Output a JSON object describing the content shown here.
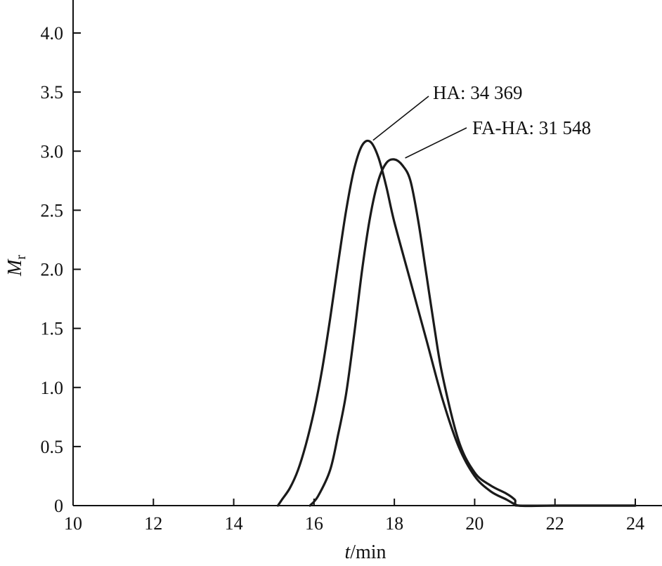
{
  "chart_data": {
    "type": "line",
    "xlabel": {
      "italic": "t",
      "rest": "/min"
    },
    "ylabel": {
      "italic": "M",
      "sub": "r"
    },
    "xlim": [
      10,
      24
    ],
    "ylim": [
      0,
      4.2
    ],
    "xticks": [
      10,
      12,
      14,
      16,
      18,
      20,
      22,
      24
    ],
    "yticks": [
      0,
      0.5,
      1.0,
      1.5,
      2.0,
      2.5,
      3.0,
      3.5,
      4.0
    ],
    "ytick_labels": [
      "0",
      "0.5",
      "1.0",
      "1.5",
      "2.0",
      "2.5",
      "3.0",
      "3.5",
      "4.0"
    ],
    "series": [
      {
        "label": "HA: 34 369",
        "x": [
          15.1,
          15.2,
          15.4,
          15.6,
          15.8,
          16.0,
          16.2,
          16.4,
          16.6,
          16.8,
          17.0,
          17.2,
          17.4,
          17.6,
          17.8,
          18.0,
          18.4,
          18.8,
          19.2,
          19.6,
          20.0,
          20.4,
          20.8,
          21.0,
          21.1,
          22.0,
          24.0
        ],
        "y": [
          0,
          0.05,
          0.15,
          0.3,
          0.52,
          0.8,
          1.15,
          1.58,
          2.05,
          2.5,
          2.85,
          3.05,
          3.08,
          2.95,
          2.7,
          2.4,
          1.9,
          1.4,
          0.9,
          0.5,
          0.25,
          0.12,
          0.05,
          0.01,
          0,
          0,
          0
        ]
      },
      {
        "label": "FA-HA: 31 548",
        "x": [
          15.9,
          16.1,
          16.4,
          16.6,
          16.8,
          17.0,
          17.2,
          17.4,
          17.6,
          17.8,
          18.0,
          18.2,
          18.4,
          18.6,
          18.8,
          19.0,
          19.2,
          19.6,
          20.0,
          20.4,
          20.8,
          21.0,
          21.1,
          22.0,
          24.0
        ],
        "y": [
          0,
          0.08,
          0.3,
          0.6,
          0.95,
          1.45,
          2.0,
          2.45,
          2.75,
          2.9,
          2.93,
          2.88,
          2.75,
          2.4,
          1.95,
          1.5,
          1.1,
          0.55,
          0.28,
          0.17,
          0.1,
          0.05,
          0,
          0,
          0
        ]
      }
    ],
    "annotations": [
      {
        "text": "HA: 34 369",
        "point": [
          17.4,
          3.08
        ]
      },
      {
        "text": "FA-HA: 31 548",
        "point": [
          18.2,
          2.93
        ]
      }
    ],
    "grid": false,
    "legend": "none"
  }
}
